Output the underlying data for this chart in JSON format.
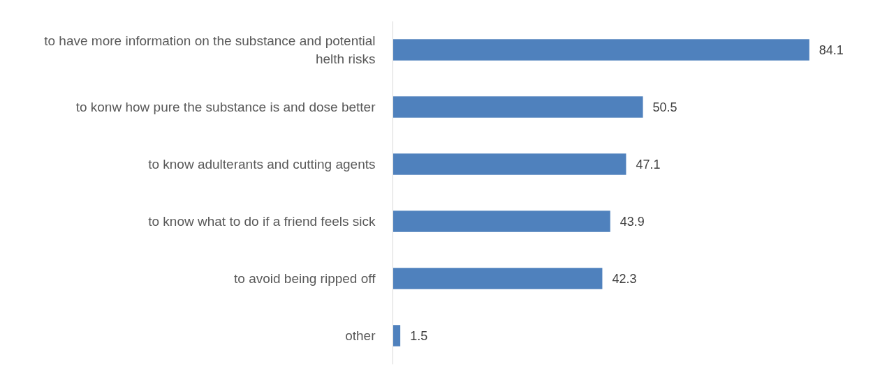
{
  "chart_data": {
    "type": "bar",
    "orientation": "horizontal",
    "categories": [
      "to have more information on the substance and potential helth risks",
      "to konw how pure the substance is and dose better",
      "to know adulterants and cutting agents",
      "to know what to do if a friend feels sick",
      "to avoid being ripped off",
      "other"
    ],
    "values": [
      84.1,
      50.5,
      47.1,
      43.9,
      42.3,
      1.5
    ],
    "color": "#4f81bd",
    "data_labels": true
  }
}
